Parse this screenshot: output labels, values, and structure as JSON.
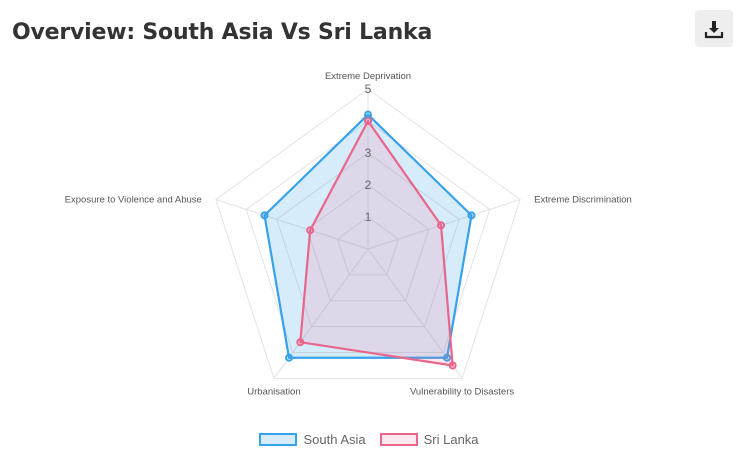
{
  "header": {
    "title": "Overview: South Asia Vs Sri Lanka"
  },
  "toolbar": {
    "download_icon": "download-icon"
  },
  "chart_data": {
    "type": "radar",
    "categories": [
      "Extreme Deprivation",
      "Extreme Discrimination",
      "Vulnerability to Disasters",
      "Urbanisation",
      "Exposure to Violence and Abuse"
    ],
    "r_range": [
      0,
      5
    ],
    "r_ticks": [
      "1",
      "2",
      "3",
      "5"
    ],
    "grid": true,
    "legend_position": "bottom",
    "series": [
      {
        "name": "South Asia",
        "values": [
          4.2,
          3.4,
          4.2,
          4.2,
          3.4
        ],
        "color": "#36A2EB",
        "fill": "rgba(54,162,235,0.2)"
      },
      {
        "name": "Sri Lanka",
        "values": [
          4.0,
          2.4,
          4.5,
          3.6,
          1.9
        ],
        "color": "#E8668A",
        "fill": "rgba(255,99,132,0.15)"
      }
    ]
  }
}
